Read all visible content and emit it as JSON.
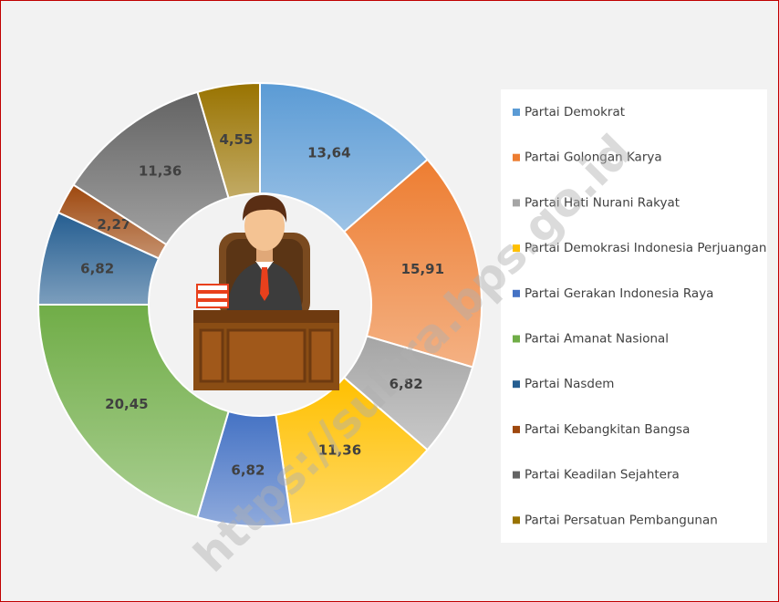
{
  "chart_data": {
    "type": "donut",
    "categories": [
      "Partai Demokrat",
      "Partai Golongan Karya",
      "Partai Hati Nurani Rakyat",
      "Partai Demokrasi Indonesia Perjuangan",
      "Partai Gerakan Indonesia Raya",
      "Partai Amanat Nasional",
      "Partai Nasdem",
      "Partai Kebangkitan Bangsa",
      "Partai Keadilan Sejahtera",
      "Partai Persatuan Pembangunan"
    ],
    "values": [
      13.64,
      15.91,
      6.82,
      11.36,
      6.82,
      20.45,
      6.82,
      2.27,
      11.36,
      4.55
    ],
    "value_labels": [
      "13,64",
      "15,91",
      "6,82",
      "11,36",
      "6,82",
      "20,45",
      "6,82",
      "2,27",
      "11,36",
      "4,55"
    ],
    "colors": [
      "#5b9bd5",
      "#ed7d31",
      "#a5a5a5",
      "#ffc000",
      "#4472c4",
      "#70ad47",
      "#255e91",
      "#9e480e",
      "#636363",
      "#997300"
    ],
    "legend": "right"
  },
  "watermark": "https://sultra.bps.go.id"
}
